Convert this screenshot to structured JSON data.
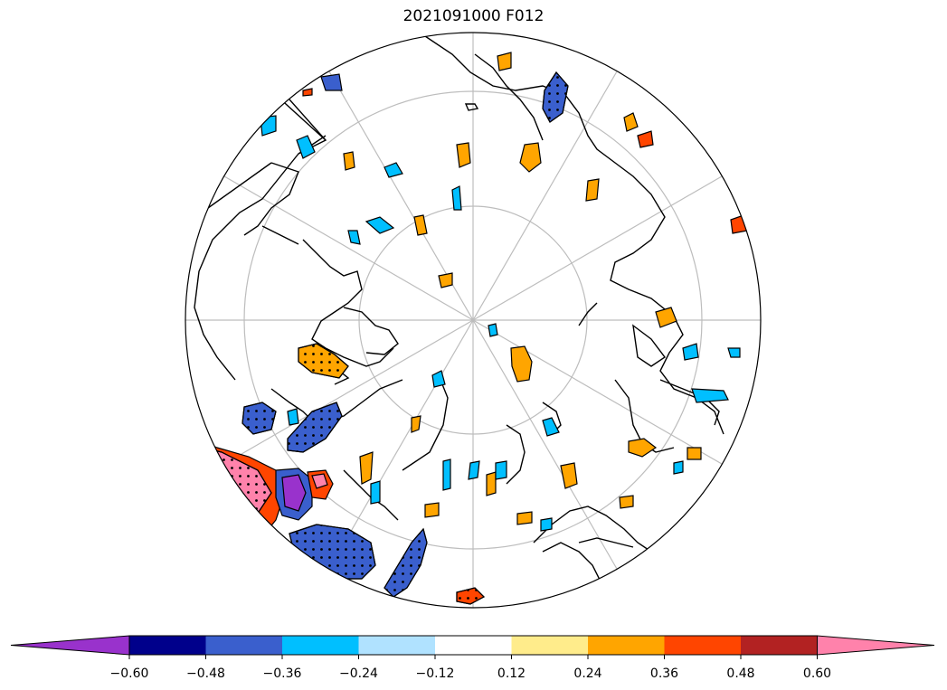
{
  "title": "2021091000 F012",
  "map": {
    "projection": "north-polar-stereographic",
    "graticule": "gray",
    "coastlines": "black"
  },
  "colorbar": {
    "extend": "both",
    "colors": [
      "#9932cc",
      "#00008b",
      "#3a5fcd",
      "#00bfff",
      "#b0e2ff",
      "#ffffff",
      "#ffec8b",
      "#ffa500",
      "#ff4500",
      "#b22222",
      "#ff82ab"
    ],
    "tick_labels": [
      "−0.60",
      "−0.48",
      "−0.36",
      "−0.24",
      "−0.12",
      "0.12",
      "0.24",
      "0.36",
      "0.48",
      "0.60"
    ]
  }
}
